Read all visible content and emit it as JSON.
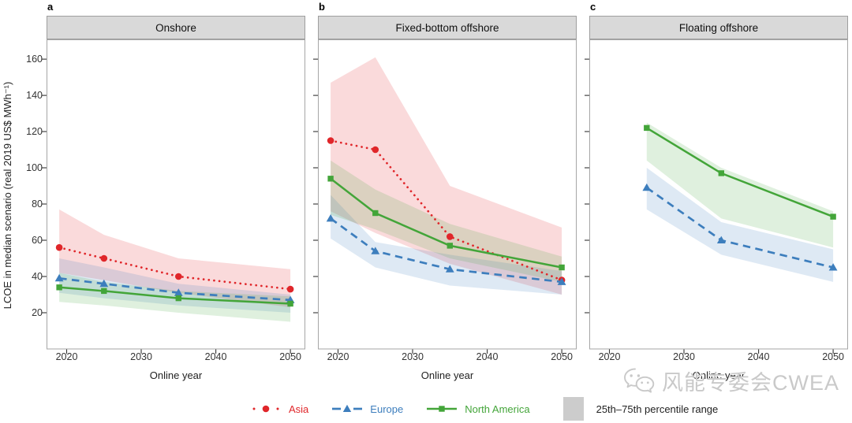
{
  "figure": {
    "y_axis_title": "LCOE in median scenario (real 2019 US$ MWh⁻¹)",
    "x_axis_title": "Online year"
  },
  "colors": {
    "asia": "#e0262a",
    "europe": "#3d7ebd",
    "north_america": "#43a539",
    "band_opacity": 0.17,
    "panel_header_bg": "#d9d9d9",
    "panel_border": "#a6a6a6",
    "tick": "#333333",
    "legend_swatch": "#cccccc",
    "watermark": "#c9c9c9"
  },
  "legend": {
    "items": [
      {
        "label": "Asia",
        "style": "dotted",
        "marker": "circle",
        "color_key": "asia"
      },
      {
        "label": "Europe",
        "style": "dashed",
        "marker": "triangle",
        "color_key": "europe"
      },
      {
        "label": "North America",
        "style": "solid",
        "marker": "square",
        "color_key": "north_america"
      }
    ],
    "range_label": "25th–75th percentile range"
  },
  "watermark": {
    "text": "风能专委会CWEA",
    "icon": "wechat-icon"
  },
  "chart_data": [
    {
      "type": "line",
      "panel_label": "a",
      "title": "Onshore",
      "xlabel": "Online year",
      "ylabel": "LCOE in median scenario (real 2019 US$ MWh⁻¹)",
      "grid": false,
      "band_meaning": "25th–75th percentile range",
      "x": [
        2019,
        2025,
        2035,
        2050
      ],
      "x_ticks": [
        2020,
        2030,
        2040,
        2050
      ],
      "y_ticks": [
        20,
        40,
        60,
        80,
        100,
        120,
        140,
        160
      ],
      "xlim": [
        2017.3,
        2052
      ],
      "ylim": [
        0,
        170.9
      ],
      "series": [
        {
          "name": "Asia",
          "color_key": "asia",
          "line_style": "dotted",
          "marker": "circle",
          "values": [
            56,
            50,
            40,
            33
          ],
          "band_low": [
            42,
            38,
            31,
            23
          ],
          "band_high": [
            77,
            63,
            50,
            44
          ]
        },
        {
          "name": "Europe",
          "color_key": "europe",
          "line_style": "dashed",
          "marker": "triangle",
          "values": [
            39,
            36,
            31,
            27
          ],
          "band_low": [
            31,
            28,
            24,
            20
          ],
          "band_high": [
            50,
            45,
            36,
            30
          ]
        },
        {
          "name": "North America",
          "color_key": "north_america",
          "line_style": "solid",
          "marker": "square",
          "values": [
            34,
            32,
            28,
            25
          ],
          "band_low": [
            26,
            24,
            20,
            15
          ],
          "band_high": [
            42,
            37,
            32,
            29
          ]
        }
      ]
    },
    {
      "type": "line",
      "panel_label": "b",
      "title": "Fixed-bottom offshore",
      "xlabel": "Online year",
      "ylabel": "LCOE in median scenario (real 2019 US$ MWh⁻¹)",
      "grid": false,
      "band_meaning": "25th–75th percentile range",
      "x": [
        2019,
        2025,
        2035,
        2050
      ],
      "x_ticks": [
        2020,
        2030,
        2040,
        2050
      ],
      "y_ticks": [
        20,
        40,
        60,
        80,
        100,
        120,
        140,
        160
      ],
      "xlim": [
        2017.3,
        2052
      ],
      "ylim": [
        0,
        170.9
      ],
      "series": [
        {
          "name": "Asia",
          "color_key": "asia",
          "line_style": "dotted",
          "marker": "circle",
          "values": [
            115,
            110,
            62,
            38
          ],
          "band_low": [
            76,
            64,
            47,
            30
          ],
          "band_high": [
            147,
            161,
            90,
            67
          ]
        },
        {
          "name": "Europe",
          "color_key": "europe",
          "line_style": "dashed",
          "marker": "triangle",
          "values": [
            72,
            54,
            44,
            37
          ],
          "band_low": [
            61,
            45,
            35,
            30
          ],
          "band_high": [
            85,
            59,
            52,
            43
          ]
        },
        {
          "name": "North America",
          "color_key": "north_america",
          "line_style": "solid",
          "marker": "square",
          "values": [
            94,
            75,
            57,
            45
          ],
          "band_low": [
            74,
            66,
            50,
            37
          ],
          "band_high": [
            104,
            88,
            69,
            51
          ]
        }
      ]
    },
    {
      "type": "line",
      "panel_label": "c",
      "title": "Floating offshore",
      "xlabel": "Online year",
      "ylabel": "LCOE in median scenario (real 2019 US$ MWh⁻¹)",
      "grid": false,
      "band_meaning": "25th–75th percentile range",
      "x": [
        2025,
        2035,
        2050
      ],
      "x_ticks": [
        2020,
        2030,
        2040,
        2050
      ],
      "y_ticks": [
        20,
        40,
        60,
        80,
        100,
        120,
        140,
        160
      ],
      "xlim": [
        2017.3,
        2052
      ],
      "ylim": [
        0,
        170.9
      ],
      "series": [
        {
          "name": "Europe",
          "color_key": "europe",
          "line_style": "dashed",
          "marker": "triangle",
          "values": [
            89,
            60,
            45
          ],
          "band_low": [
            77,
            52,
            37
          ],
          "band_high": [
            100,
            70,
            55
          ]
        },
        {
          "name": "North America",
          "color_key": "north_america",
          "line_style": "solid",
          "marker": "square",
          "values": [
            122,
            97,
            73
          ],
          "band_low": [
            104,
            72,
            56
          ],
          "band_high": [
            125,
            100,
            76
          ]
        }
      ]
    }
  ]
}
